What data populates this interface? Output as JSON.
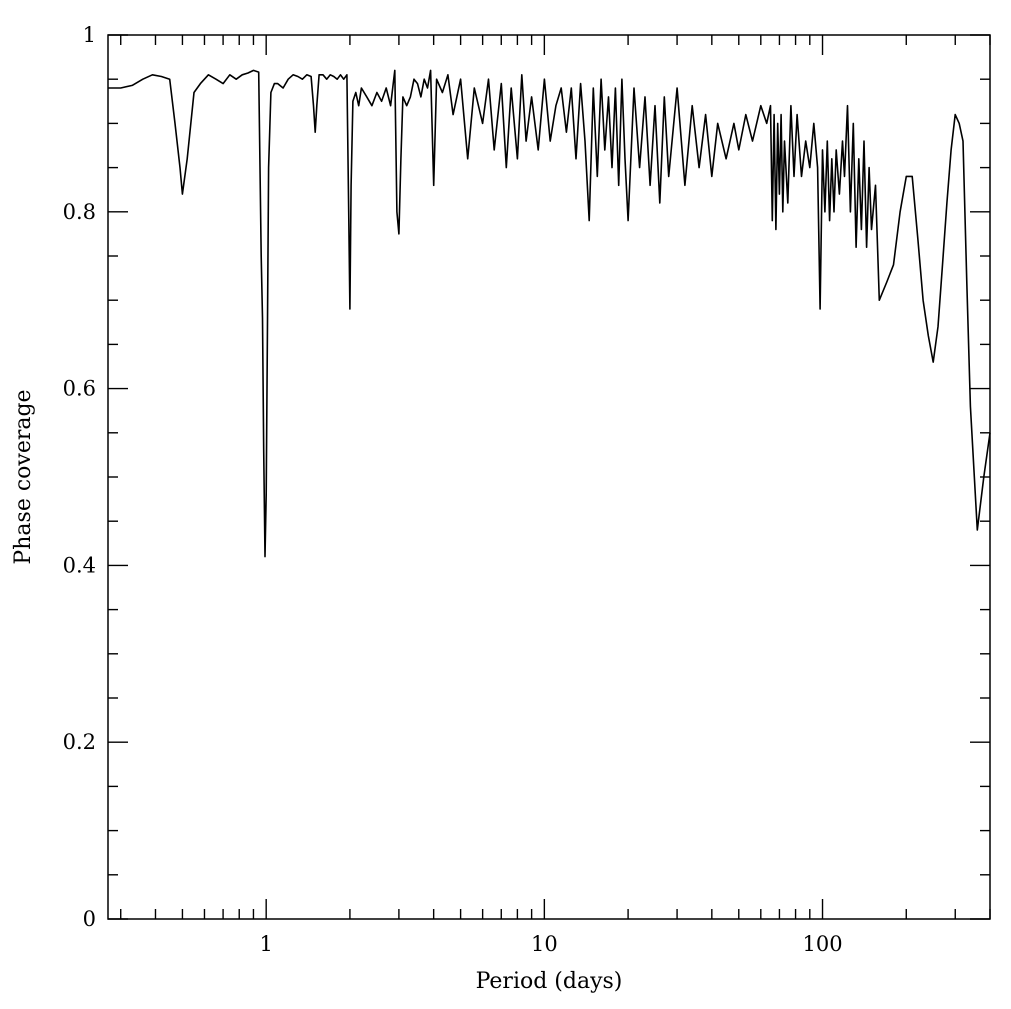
{
  "chart_data": {
    "type": "line",
    "xlabel": "Period (days)",
    "ylabel": "Phase coverage",
    "xscale": "log",
    "xlim": [
      0.27,
      400
    ],
    "ylim": [
      0,
      1
    ],
    "x_tick_labels": [
      {
        "value": 1,
        "label": "1"
      },
      {
        "value": 10,
        "label": "10"
      },
      {
        "value": 100,
        "label": "100"
      }
    ],
    "y_tick_labels": [
      {
        "value": 0,
        "label": "0"
      },
      {
        "value": 0.2,
        "label": "0.2"
      },
      {
        "value": 0.4,
        "label": "0.4"
      },
      {
        "value": 0.6,
        "label": "0.6"
      },
      {
        "value": 0.8,
        "label": "0.8"
      },
      {
        "value": 1,
        "label": "1"
      }
    ],
    "grid": false,
    "legend": "none",
    "series": [
      {
        "x": [
          0.27,
          0.3,
          0.33,
          0.36,
          0.39,
          0.42,
          0.45,
          0.47,
          0.49,
          0.5,
          0.52,
          0.55,
          0.58,
          0.62,
          0.66,
          0.7,
          0.74,
          0.78,
          0.82,
          0.86,
          0.9,
          0.94,
          0.96,
          0.97,
          0.98,
          0.99,
          1.0,
          1.01,
          1.02,
          1.04,
          1.07,
          1.1,
          1.15,
          1.2,
          1.25,
          1.3,
          1.35,
          1.4,
          1.45,
          1.48,
          1.5,
          1.52,
          1.55,
          1.6,
          1.65,
          1.7,
          1.75,
          1.8,
          1.85,
          1.9,
          1.95,
          1.98,
          2.0,
          2.02,
          2.05,
          2.1,
          2.15,
          2.2,
          2.3,
          2.4,
          2.5,
          2.6,
          2.7,
          2.8,
          2.9,
          2.95,
          3.0,
          3.05,
          3.1,
          3.2,
          3.3,
          3.4,
          3.5,
          3.6,
          3.7,
          3.8,
          3.9,
          4.0,
          4.1,
          4.3,
          4.5,
          4.7,
          5.0,
          5.3,
          5.6,
          6.0,
          6.3,
          6.6,
          7.0,
          7.3,
          7.6,
          8.0,
          8.3,
          8.6,
          9.0,
          9.5,
          10,
          10.5,
          11,
          11.5,
          12,
          12.5,
          13,
          13.5,
          14,
          14.5,
          15,
          15.5,
          16,
          16.5,
          17,
          17.5,
          18,
          18.5,
          19,
          19.5,
          20,
          21,
          22,
          23,
          24,
          25,
          26,
          27,
          28,
          30,
          32,
          34,
          36,
          38,
          40,
          42,
          45,
          48,
          50,
          53,
          56,
          60,
          63,
          65,
          66,
          67,
          68,
          69,
          70,
          71,
          72,
          73,
          75,
          77,
          79,
          81,
          84,
          87,
          90,
          93,
          96,
          98,
          100,
          102,
          104,
          106,
          108,
          110,
          112,
          115,
          118,
          120,
          123,
          126,
          129,
          132,
          135,
          138,
          141,
          144,
          147,
          150,
          155,
          160,
          170,
          180,
          190,
          200,
          210,
          220,
          230,
          240,
          250,
          260,
          270,
          280,
          290,
          300,
          310,
          320,
          330,
          340,
          360,
          380,
          400
        ],
        "y": [
          0.94,
          0.94,
          0.943,
          0.95,
          0.955,
          0.953,
          0.95,
          0.9,
          0.85,
          0.82,
          0.86,
          0.935,
          0.945,
          0.955,
          0.95,
          0.945,
          0.955,
          0.95,
          0.955,
          0.957,
          0.96,
          0.958,
          0.75,
          0.68,
          0.53,
          0.41,
          0.48,
          0.66,
          0.85,
          0.935,
          0.945,
          0.945,
          0.94,
          0.95,
          0.955,
          0.953,
          0.95,
          0.955,
          0.953,
          0.92,
          0.89,
          0.92,
          0.955,
          0.955,
          0.95,
          0.955,
          0.953,
          0.95,
          0.955,
          0.95,
          0.955,
          0.8,
          0.69,
          0.83,
          0.925,
          0.935,
          0.92,
          0.94,
          0.93,
          0.92,
          0.935,
          0.925,
          0.94,
          0.92,
          0.96,
          0.8,
          0.775,
          0.86,
          0.93,
          0.92,
          0.93,
          0.95,
          0.945,
          0.93,
          0.95,
          0.94,
          0.96,
          0.83,
          0.95,
          0.935,
          0.955,
          0.91,
          0.95,
          0.86,
          0.94,
          0.9,
          0.95,
          0.87,
          0.945,
          0.85,
          0.94,
          0.86,
          0.955,
          0.88,
          0.93,
          0.87,
          0.95,
          0.88,
          0.92,
          0.94,
          0.89,
          0.94,
          0.86,
          0.945,
          0.88,
          0.79,
          0.94,
          0.84,
          0.95,
          0.87,
          0.93,
          0.85,
          0.94,
          0.83,
          0.95,
          0.86,
          0.79,
          0.94,
          0.85,
          0.93,
          0.83,
          0.92,
          0.81,
          0.93,
          0.84,
          0.94,
          0.83,
          0.92,
          0.85,
          0.91,
          0.84,
          0.9,
          0.86,
          0.9,
          0.87,
          0.91,
          0.88,
          0.92,
          0.9,
          0.92,
          0.79,
          0.91,
          0.78,
          0.9,
          0.82,
          0.91,
          0.8,
          0.88,
          0.81,
          0.92,
          0.84,
          0.91,
          0.84,
          0.88,
          0.85,
          0.9,
          0.85,
          0.69,
          0.87,
          0.8,
          0.88,
          0.79,
          0.86,
          0.8,
          0.87,
          0.82,
          0.88,
          0.84,
          0.92,
          0.8,
          0.9,
          0.76,
          0.86,
          0.78,
          0.88,
          0.76,
          0.85,
          0.78,
          0.83,
          0.7,
          0.72,
          0.74,
          0.8,
          0.84,
          0.84,
          0.77,
          0.7,
          0.66,
          0.63,
          0.67,
          0.74,
          0.81,
          0.87,
          0.91,
          0.9,
          0.88,
          0.72,
          0.58,
          0.44,
          0.5,
          0.55
        ]
      }
    ]
  }
}
